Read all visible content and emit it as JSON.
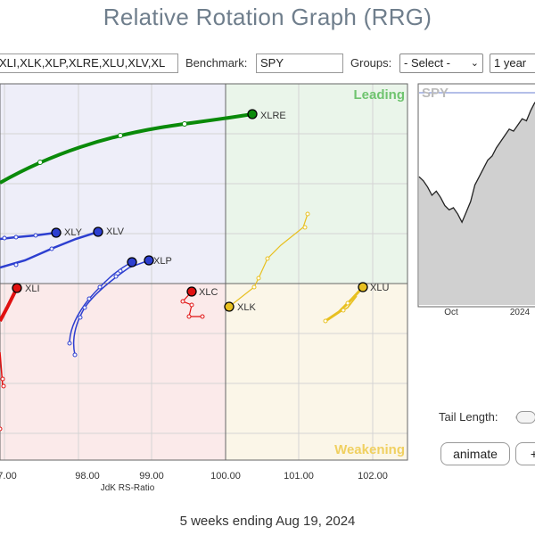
{
  "page": {
    "title": "Relative Rotation Graph (RRG)"
  },
  "toolbar": {
    "symbols_value": "XLI,XLK,XLP,XLRE,XLU,XLV,XL",
    "benchmark_label": "Benchmark:",
    "benchmark_value": "SPY",
    "groups_label": "Groups:",
    "groups_selected": "- Select -",
    "period_selected": "1 year"
  },
  "rrg": {
    "quadrants": {
      "leading": "Leading",
      "weakening": "Weakening"
    },
    "x_axis_title": "JdK RS-Ratio",
    "x_ticks": [
      "7.00",
      "98.00",
      "99.00",
      "100.00",
      "101.00",
      "102.00"
    ],
    "colors": {
      "green": "#0a8a0a",
      "blue": "#2d3fd0",
      "red": "#e01010",
      "yellow": "#e8c020",
      "grid": "#666666"
    },
    "sectors": [
      {
        "name": "XLRE",
        "color": "#0a8a0a"
      },
      {
        "name": "XLY",
        "color": "#2d3fd0"
      },
      {
        "name": "XLV",
        "color": "#2d3fd0"
      },
      {
        "name": "XLP",
        "color": "#2d3fd0"
      },
      {
        "name": "XLI",
        "color": "#e01010"
      },
      {
        "name": "XLC",
        "color": "#e01010"
      },
      {
        "name": "XLK",
        "color": "#e8c020"
      },
      {
        "name": "XLU",
        "color": "#e8c020"
      }
    ]
  },
  "mini_chart": {
    "label": "SPY",
    "x_labels": [
      "Oct",
      "2024"
    ],
    "series": [
      0.62,
      0.6,
      0.57,
      0.53,
      0.55,
      0.52,
      0.48,
      0.46,
      0.47,
      0.44,
      0.4,
      0.45,
      0.5,
      0.58,
      0.62,
      0.66,
      0.7,
      0.72,
      0.76,
      0.79,
      0.82,
      0.85,
      0.84,
      0.87,
      0.9,
      0.89,
      0.94,
      0.98
    ]
  },
  "controls": {
    "tail_length_label": "Tail Length:",
    "animate_label": "animate",
    "step_label": "+"
  },
  "footer": {
    "caption": "5 weeks ending Aug 19, 2024"
  }
}
